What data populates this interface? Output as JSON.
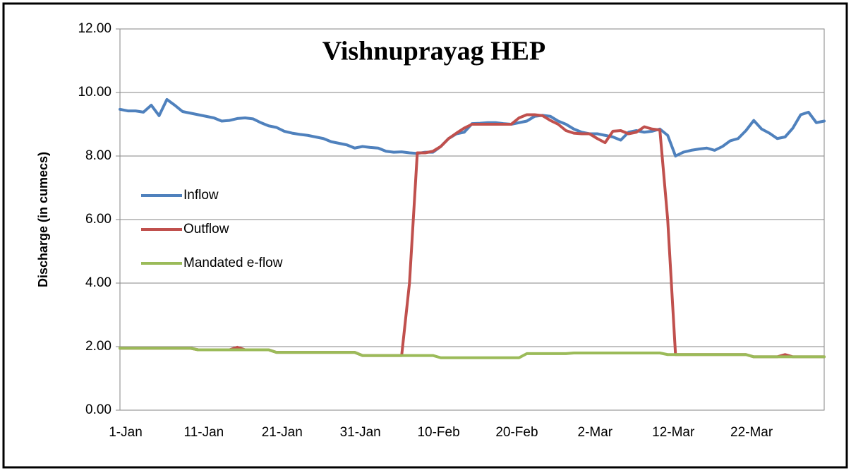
{
  "chart_data": {
    "type": "line",
    "title": "Vishnuprayag HEP",
    "y_label": "Discharge (in cumecs)",
    "categories": [
      "1-Jan",
      null,
      null,
      null,
      null,
      null,
      null,
      null,
      null,
      null,
      "11-Jan",
      null,
      null,
      null,
      null,
      null,
      null,
      null,
      null,
      null,
      "21-Jan",
      null,
      null,
      null,
      null,
      null,
      null,
      null,
      null,
      null,
      "31-Jan",
      null,
      null,
      null,
      null,
      null,
      null,
      null,
      null,
      null,
      "10-Feb",
      null,
      null,
      null,
      null,
      null,
      null,
      null,
      null,
      null,
      "20-Feb",
      null,
      null,
      null,
      null,
      null,
      null,
      null,
      null,
      null,
      "2-Mar",
      null,
      null,
      null,
      null,
      null,
      null,
      null,
      null,
      null,
      "12-Mar",
      null,
      null,
      null,
      null,
      null,
      null,
      null,
      null,
      null,
      "22-Mar",
      null,
      null,
      null,
      null,
      null,
      null,
      null,
      null,
      null,
      null
    ],
    "series": [
      {
        "name": "Inflow",
        "color": "#4f81bd",
        "values": [
          9.47,
          9.42,
          9.42,
          9.38,
          9.6,
          9.27,
          9.78,
          9.6,
          9.4,
          9.35,
          9.3,
          9.25,
          9.2,
          9.1,
          9.12,
          9.18,
          9.2,
          9.17,
          9.05,
          8.95,
          8.9,
          8.78,
          8.72,
          8.68,
          8.65,
          8.6,
          8.55,
          8.45,
          8.4,
          8.35,
          8.25,
          8.3,
          8.27,
          8.25,
          8.15,
          8.12,
          8.13,
          8.1,
          8.08,
          8.12,
          8.12,
          8.3,
          8.55,
          8.7,
          8.75,
          9.02,
          9.03,
          9.05,
          9.05,
          9.02,
          9.0,
          9.05,
          9.1,
          9.25,
          9.28,
          9.25,
          9.1,
          9.0,
          8.85,
          8.75,
          8.7,
          8.7,
          8.65,
          8.6,
          8.5,
          8.75,
          8.8,
          8.75,
          8.78,
          8.85,
          8.65,
          8.0,
          8.12,
          8.18,
          8.22,
          8.25,
          8.18,
          8.3,
          8.48,
          8.55,
          8.8,
          9.12,
          8.85,
          8.72,
          8.55,
          8.6,
          8.88,
          9.3,
          9.38,
          9.05,
          9.1
        ]
      },
      {
        "name": "Outflow",
        "color": "#c0504d",
        "values": [
          1.95,
          1.95,
          1.95,
          1.95,
          1.95,
          1.95,
          1.95,
          1.95,
          1.95,
          1.95,
          1.9,
          1.9,
          1.9,
          1.9,
          1.9,
          1.98,
          1.9,
          1.9,
          1.9,
          1.9,
          1.82,
          1.82,
          1.82,
          1.82,
          1.82,
          1.82,
          1.82,
          1.82,
          1.82,
          1.82,
          1.82,
          1.72,
          1.72,
          1.72,
          1.72,
          1.72,
          1.72,
          4.0,
          8.1,
          8.1,
          8.15,
          8.3,
          8.55,
          8.72,
          8.88,
          9.0,
          9.0,
          9.0,
          9.0,
          9.0,
          9.0,
          9.2,
          9.3,
          9.3,
          9.27,
          9.12,
          9.0,
          8.8,
          8.72,
          8.7,
          8.7,
          8.55,
          8.42,
          8.78,
          8.8,
          8.7,
          8.75,
          8.92,
          8.85,
          8.82,
          6.0,
          1.75,
          1.75,
          1.75,
          1.75,
          1.75,
          1.75,
          1.75,
          1.75,
          1.75,
          1.75,
          1.68,
          1.68,
          1.68,
          1.68,
          1.75,
          1.68,
          1.68,
          1.68,
          1.68,
          1.68
        ]
      },
      {
        "name": "Mandated e-flow",
        "color": "#9bbb59",
        "values": [
          1.95,
          1.95,
          1.95,
          1.95,
          1.95,
          1.95,
          1.95,
          1.95,
          1.95,
          1.95,
          1.9,
          1.9,
          1.9,
          1.9,
          1.9,
          1.9,
          1.9,
          1.9,
          1.9,
          1.9,
          1.82,
          1.82,
          1.82,
          1.82,
          1.82,
          1.82,
          1.82,
          1.82,
          1.82,
          1.82,
          1.82,
          1.72,
          1.72,
          1.72,
          1.72,
          1.72,
          1.72,
          1.72,
          1.72,
          1.72,
          1.72,
          1.65,
          1.65,
          1.65,
          1.65,
          1.65,
          1.65,
          1.65,
          1.65,
          1.65,
          1.65,
          1.65,
          1.78,
          1.78,
          1.78,
          1.78,
          1.78,
          1.78,
          1.8,
          1.8,
          1.8,
          1.8,
          1.8,
          1.8,
          1.8,
          1.8,
          1.8,
          1.8,
          1.8,
          1.8,
          1.75,
          1.75,
          1.75,
          1.75,
          1.75,
          1.75,
          1.75,
          1.75,
          1.75,
          1.75,
          1.75,
          1.68,
          1.68,
          1.68,
          1.68,
          1.68,
          1.68,
          1.68,
          1.68,
          1.68,
          1.68
        ]
      }
    ],
    "ylim": [
      0,
      12
    ],
    "yticks": [
      {
        "value": 0,
        "label": "0.00"
      },
      {
        "value": 2,
        "label": "2.00"
      },
      {
        "value": 4,
        "label": "4.00"
      },
      {
        "value": 6,
        "label": "6.00"
      },
      {
        "value": 8,
        "label": "8.00"
      },
      {
        "value": 10,
        "label": "10.00"
      },
      {
        "value": 12,
        "label": "12.00"
      }
    ],
    "grid": true,
    "legend": "left"
  }
}
